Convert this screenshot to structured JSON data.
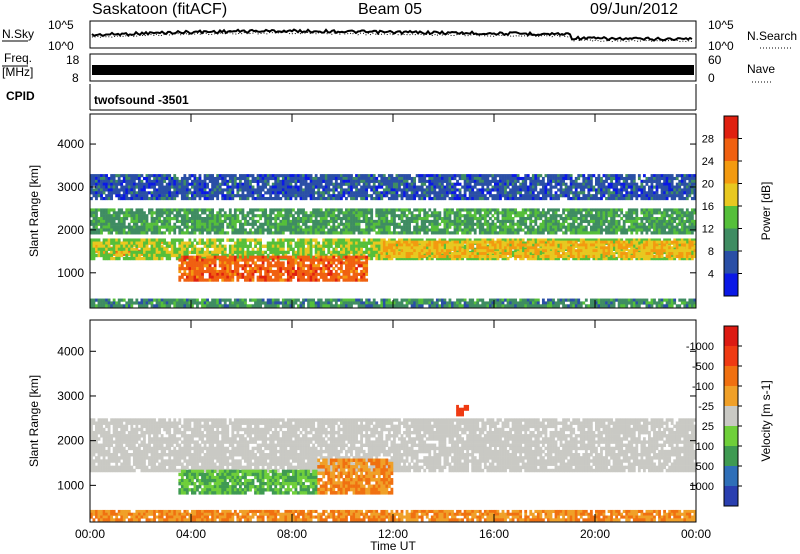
{
  "header": {
    "station": "Saskatoon (fitACF)",
    "beam": "Beam 05",
    "date": "09/Jun/2012"
  },
  "noise_panel": {
    "left_label": "N.Sky",
    "right_label": "N.Search",
    "left_ticks": [
      "10^5",
      "10^0"
    ],
    "right_ticks": [
      "10^5",
      "10^0"
    ]
  },
  "freq_panel": {
    "left_label_1": "Freq.",
    "left_label_2": "[MHz]",
    "right_label": "Nave",
    "left_ticks": [
      "18",
      "8"
    ],
    "right_ticks": [
      "60",
      "0"
    ]
  },
  "cpid_panel": {
    "label": "CPID",
    "value": "twofsound -3501"
  },
  "colors": {
    "power_scale": [
      "#0a18e6",
      "#2a4fa6",
      "#3f8c62",
      "#55bf3a",
      "#e8c820",
      "#f39a10",
      "#f06010",
      "#e02010"
    ],
    "velocity_scale": [
      "#2a3fb0",
      "#2f6fb8",
      "#3f9a52",
      "#6fcf3a",
      "#c9c9c4",
      "#f0a028",
      "#f07010",
      "#ef3a12",
      "#dd1a12"
    ]
  },
  "chart_data": [
    {
      "type": "heatmap",
      "title": "",
      "xlabel": "Time UT",
      "ylabel": "Slant Range [km]",
      "x_range_hours": [
        0,
        24
      ],
      "xlim": [
        "00:00",
        "00:00"
      ],
      "x_tick_labels": [
        "00:00",
        "04:00",
        "08:00",
        "12:00",
        "16:00",
        "20:00",
        "00:00"
      ],
      "ylim": [
        180,
        4700
      ],
      "y_tick_values": [
        1000,
        2000,
        3000,
        4000
      ],
      "y_tick_labels": [
        "1000",
        "2000",
        "3000",
        "4000"
      ],
      "colorbar_label": "Power [dB]",
      "colorbar_ticks": [
        "4",
        "8",
        "12",
        "16",
        "20",
        "24",
        "28"
      ],
      "colorbar_range": [
        0,
        30
      ],
      "regions": [
        {
          "t0": 0,
          "t1": 24,
          "r0": 1900,
          "r1": 2500,
          "value": 11
        },
        {
          "t0": 0,
          "t1": 3,
          "r0": 1400,
          "r1": 1750,
          "value": 22
        },
        {
          "t0": 0,
          "t1": 24,
          "r0": 1300,
          "r1": 1800,
          "value": 15
        },
        {
          "t0": 3.5,
          "t1": 11,
          "r0": 800,
          "r1": 1400,
          "value": 26
        },
        {
          "t0": 11.5,
          "t1": 24,
          "r0": 1350,
          "r1": 1750,
          "value": 20
        },
        {
          "t0": 0,
          "t1": 24,
          "r0": 2700,
          "r1": 3300,
          "value": 6
        },
        {
          "t0": 0,
          "t1": 24,
          "r0": 200,
          "r1": 400,
          "value": 10
        }
      ]
    },
    {
      "type": "heatmap",
      "title": "",
      "xlabel": "Time UT",
      "ylabel": "Slant Range [km]",
      "x_range_hours": [
        0,
        24
      ],
      "x_tick_labels": [
        "00:00",
        "04:00",
        "08:00",
        "12:00",
        "16:00",
        "20:00",
        "00:00"
      ],
      "ylim": [
        180,
        4700
      ],
      "y_tick_values": [
        1000,
        2000,
        3000,
        4000
      ],
      "y_tick_labels": [
        "1000",
        "2000",
        "3000",
        "4000"
      ],
      "colorbar_label": "Velocity [m s-1]",
      "colorbar_ticks": [
        "1000",
        "500",
        "100",
        "25",
        "-25",
        "-100",
        "-500",
        "-1000"
      ],
      "regions": [
        {
          "t0": 0,
          "t1": 24,
          "r0": 1300,
          "r1": 2500,
          "value": 0
        },
        {
          "t0": 3.5,
          "t1": 9,
          "r0": 800,
          "r1": 1350,
          "value": 150
        },
        {
          "t0": 9,
          "t1": 12,
          "r0": 800,
          "r1": 1600,
          "value": -150
        },
        {
          "t0": 0,
          "t1": 24,
          "r0": 200,
          "r1": 450,
          "value": -100
        },
        {
          "t0": 14.5,
          "t1": 15,
          "r0": 2550,
          "r1": 2800,
          "value": -400
        }
      ]
    }
  ]
}
